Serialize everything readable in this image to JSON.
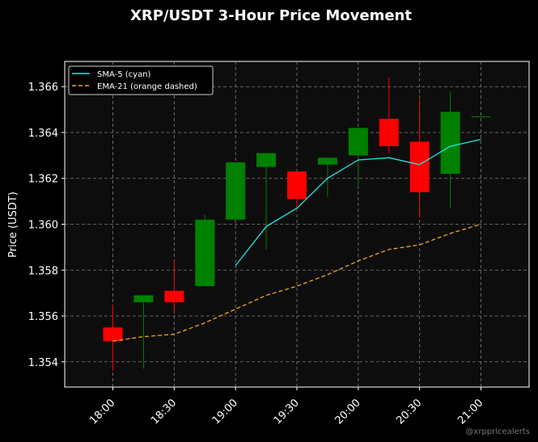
{
  "chart_data": {
    "type": "candlestick",
    "title": "XRP/USDT 3-Hour Price Movement",
    "xlabel": "",
    "ylabel": "Price (USDT)",
    "ylim": [
      1.3529,
      1.3671
    ],
    "yticks": [
      1.354,
      1.356,
      1.358,
      1.36,
      1.362,
      1.364,
      1.366
    ],
    "ytick_labels": [
      "1.354",
      "1.356",
      "1.358",
      "1.360",
      "1.362",
      "1.364",
      "1.366"
    ],
    "xticks": [
      "18:00",
      "18:30",
      "19:00",
      "19:30",
      "20:00",
      "20:30",
      "21:00"
    ],
    "x_interval_minutes": 15,
    "grid": true,
    "legend_position": "upper-left",
    "candles": [
      {
        "time": "18:00",
        "open": 1.3555,
        "high": 1.3565,
        "low": 1.3536,
        "close": 1.3549
      },
      {
        "time": "18:15",
        "open": 1.3566,
        "high": 1.3569,
        "low": 1.3537,
        "close": 1.3569
      },
      {
        "time": "18:30",
        "open": 1.3571,
        "high": 1.3584,
        "low": 1.3562,
        "close": 1.3566
      },
      {
        "time": "18:45",
        "open": 1.3573,
        "high": 1.3604,
        "low": 1.3573,
        "close": 1.3602
      },
      {
        "time": "19:00",
        "open": 1.3602,
        "high": 1.3627,
        "low": 1.3602,
        "close": 1.3627
      },
      {
        "time": "19:15",
        "open": 1.3625,
        "high": 1.3631,
        "low": 1.3589,
        "close": 1.3631
      },
      {
        "time": "19:30",
        "open": 1.3623,
        "high": 1.3623,
        "low": 1.3606,
        "close": 1.3611
      },
      {
        "time": "19:45",
        "open": 1.3626,
        "high": 1.3629,
        "low": 1.3612,
        "close": 1.3629
      },
      {
        "time": "20:00",
        "open": 1.363,
        "high": 1.3642,
        "low": 1.3616,
        "close": 1.3642
      },
      {
        "time": "20:15",
        "open": 1.3646,
        "high": 1.3664,
        "low": 1.3631,
        "close": 1.3634
      },
      {
        "time": "20:30",
        "open": 1.3636,
        "high": 1.3655,
        "low": 1.3603,
        "close": 1.3614
      },
      {
        "time": "20:45",
        "open": 1.3622,
        "high": 1.3658,
        "low": 1.3607,
        "close": 1.3649
      },
      {
        "time": "21:00",
        "open": 1.3647,
        "high": 1.3647,
        "low": 1.3647,
        "close": 1.3647
      }
    ],
    "series": [
      {
        "name": "SMA-5 (cyan)",
        "color": "#22e5e5",
        "dash": false,
        "values": [
          null,
          null,
          null,
          null,
          1.3582,
          1.3599,
          1.3607,
          1.362,
          1.3628,
          1.3629,
          1.3626,
          1.3634,
          1.3637
        ]
      },
      {
        "name": "EMA-21 (orange dashed)",
        "color": "#f5a623",
        "dash": true,
        "values": [
          1.3549,
          1.3551,
          1.3552,
          1.3557,
          1.3563,
          1.3569,
          1.3573,
          1.3578,
          1.3584,
          1.3589,
          1.3591,
          1.3596,
          1.36
        ]
      }
    ],
    "up_color": "#008000",
    "down_color": "#ff0000",
    "watermark": "@xrppricealerts"
  }
}
